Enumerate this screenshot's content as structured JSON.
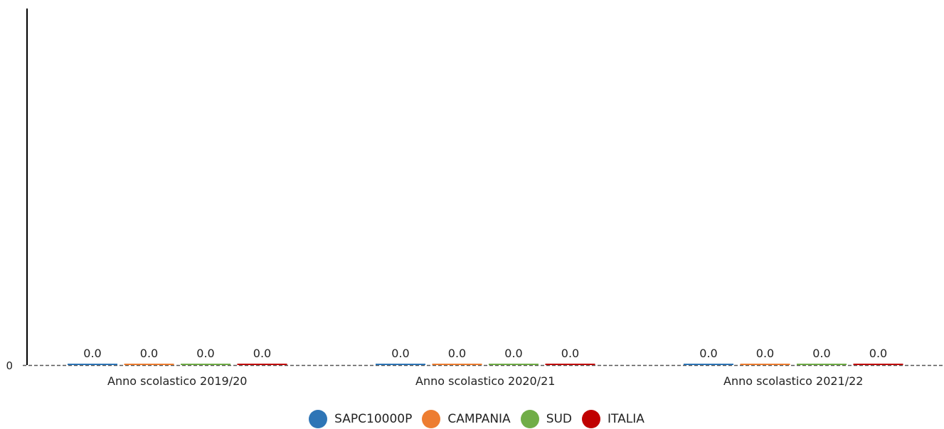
{
  "chart_data": {
    "type": "bar",
    "categories": [
      "Anno scolastico 2019/20",
      "Anno scolastico 2020/21",
      "Anno scolastico 2021/22"
    ],
    "series": [
      {
        "name": "SAPC10000P",
        "color": "#2e75b6",
        "values": [
          0.0,
          0.0,
          0.0
        ]
      },
      {
        "name": "CAMPANIA",
        "color": "#ed7d31",
        "values": [
          0.0,
          0.0,
          0.0
        ]
      },
      {
        "name": "SUD",
        "color": "#70ad47",
        "values": [
          0.0,
          0.0,
          0.0
        ]
      },
      {
        "name": "ITALIA",
        "color": "#c00000",
        "values": [
          0.0,
          0.0,
          0.0
        ]
      }
    ],
    "data_labels": [
      "0.0",
      "0.0",
      "0.0",
      "0.0"
    ],
    "y_tick_labels": [
      "0"
    ],
    "ylim": [
      0,
      1
    ],
    "title": "",
    "xlabel": "",
    "ylabel": "",
    "legend_position": "bottom",
    "grid": false
  }
}
